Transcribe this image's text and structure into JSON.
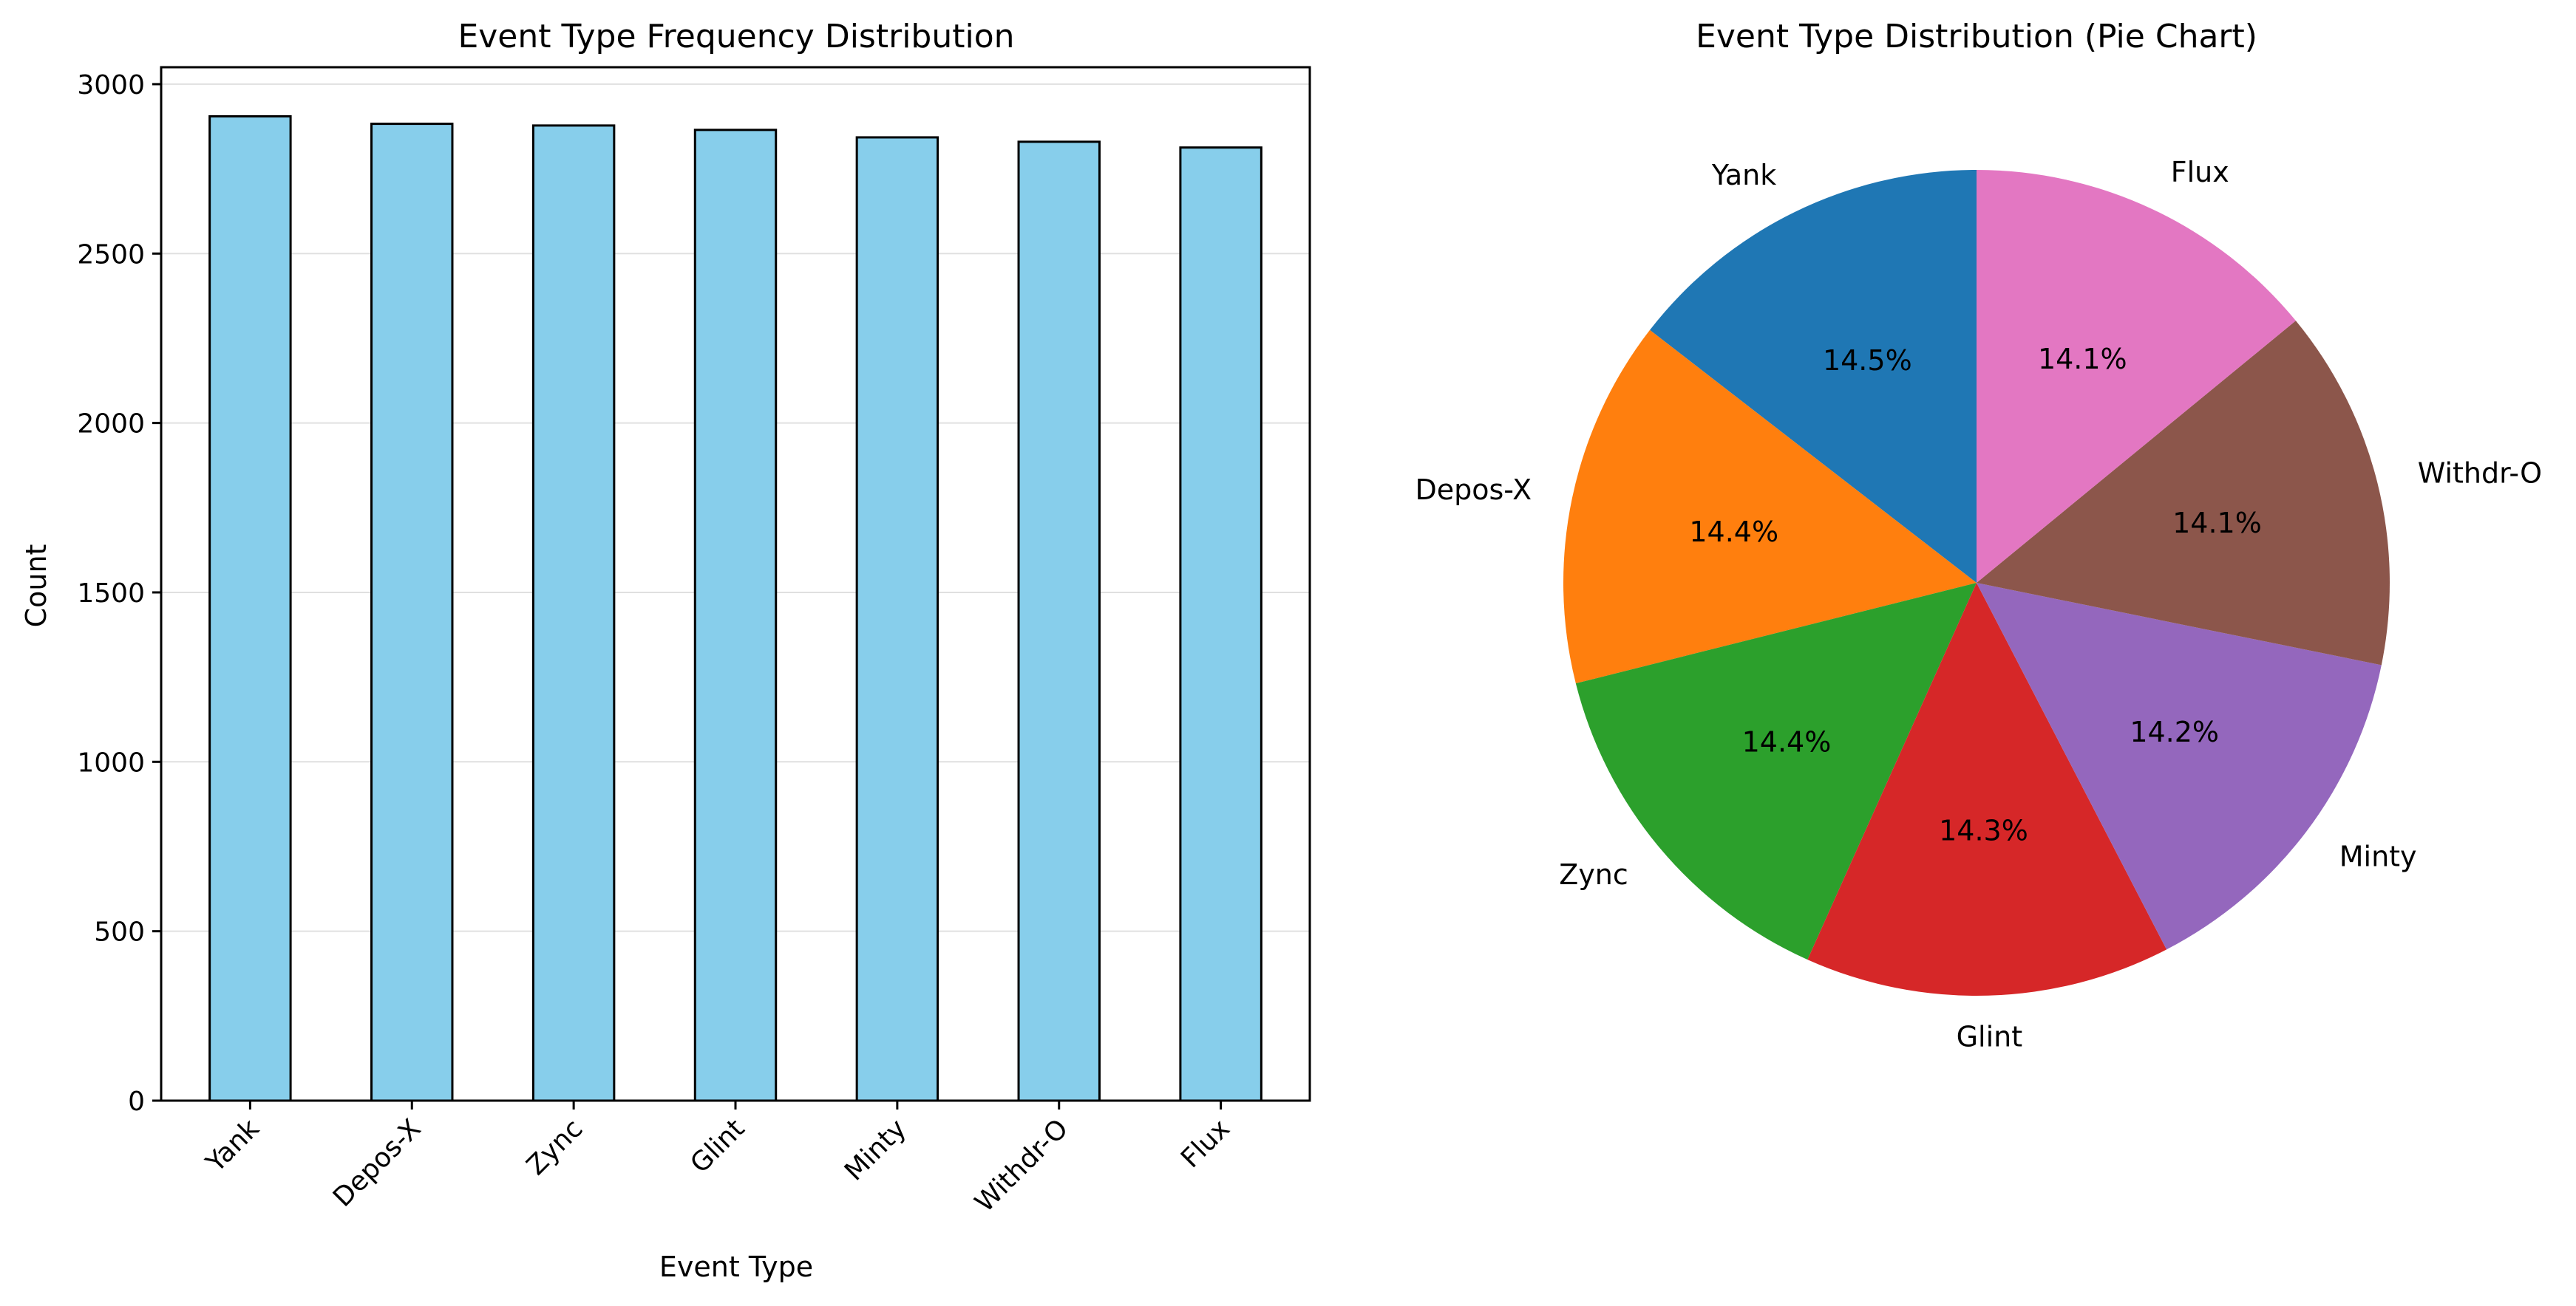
{
  "chart_data": [
    {
      "type": "bar",
      "title": "Event Type Frequency Distribution",
      "xlabel": "Event Type",
      "ylabel": "Count",
      "categories": [
        "Yank",
        "Depos-X",
        "Zync",
        "Glint",
        "Minty",
        "Withdr-O",
        "Flux"
      ],
      "values": [
        2905,
        2883,
        2878,
        2865,
        2843,
        2830,
        2813
      ],
      "ylim": [
        0,
        3050
      ],
      "yticks": [
        0,
        500,
        1000,
        1500,
        2000,
        2500,
        3000
      ],
      "bar_color": "#87CEEB",
      "edge_color": "#000000",
      "grid": "y",
      "xtick_rotation": 45
    },
    {
      "type": "pie",
      "title": "Event Type Distribution (Pie Chart)",
      "labels": [
        "Yank",
        "Depos-X",
        "Zync",
        "Glint",
        "Minty",
        "Withdr-O",
        "Flux"
      ],
      "percent_labels": [
        "14.5%",
        "14.4%",
        "14.4%",
        "14.3%",
        "14.2%",
        "14.1%",
        "14.1%"
      ],
      "values": [
        2905,
        2883,
        2878,
        2865,
        2843,
        2830,
        2813
      ],
      "colors": [
        "#1f77b4",
        "#ff7f0e",
        "#2ca02c",
        "#d62728",
        "#9467bd",
        "#8c564b",
        "#e377c2"
      ],
      "start_angle": 90,
      "direction": "counterclockwise"
    }
  ]
}
